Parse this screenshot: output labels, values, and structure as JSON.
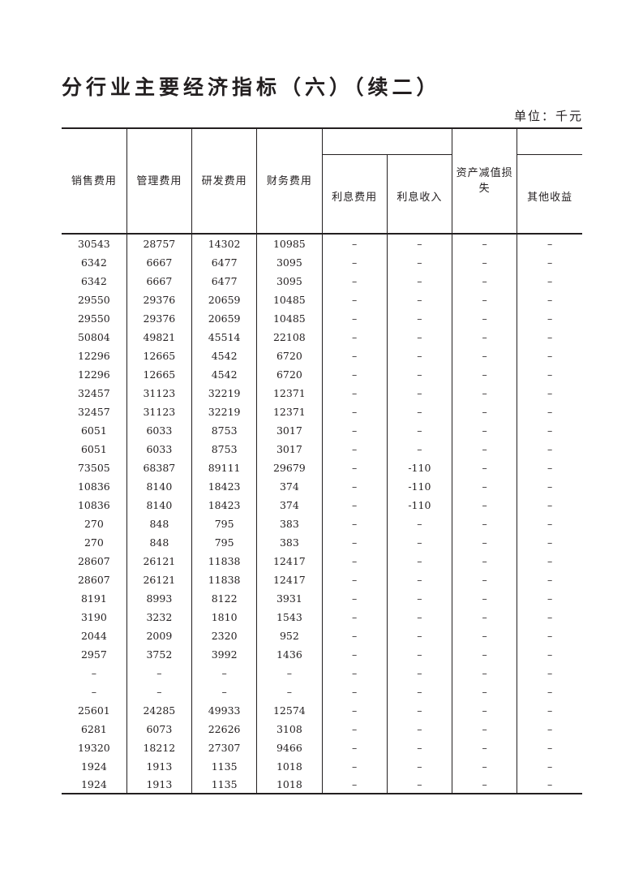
{
  "title": "分行业主要经济指标（六）（续二）",
  "unit": "单位：千元",
  "columns": [
    "销售费用",
    "管理费用",
    "研发费用",
    "财务费用",
    "利息费用",
    "利息收入",
    "资产减值损失",
    "其他收益"
  ],
  "rows": [
    [
      "30543",
      "28757",
      "14302",
      "10985",
      "–",
      "–",
      "–",
      "–"
    ],
    [
      "6342",
      "6667",
      "6477",
      "3095",
      "–",
      "–",
      "–",
      "–"
    ],
    [
      "6342",
      "6667",
      "6477",
      "3095",
      "–",
      "–",
      "–",
      "–"
    ],
    [
      "29550",
      "29376",
      "20659",
      "10485",
      "–",
      "–",
      "–",
      "–"
    ],
    [
      "29550",
      "29376",
      "20659",
      "10485",
      "–",
      "–",
      "–",
      "–"
    ],
    [
      "50804",
      "49821",
      "45514",
      "22108",
      "–",
      "–",
      "–",
      "–"
    ],
    [
      "12296",
      "12665",
      "4542",
      "6720",
      "–",
      "–",
      "–",
      "–"
    ],
    [
      "12296",
      "12665",
      "4542",
      "6720",
      "–",
      "–",
      "–",
      "–"
    ],
    [
      "32457",
      "31123",
      "32219",
      "12371",
      "–",
      "–",
      "–",
      "–"
    ],
    [
      "32457",
      "31123",
      "32219",
      "12371",
      "–",
      "–",
      "–",
      "–"
    ],
    [
      "6051",
      "6033",
      "8753",
      "3017",
      "–",
      "–",
      "–",
      "–"
    ],
    [
      "6051",
      "6033",
      "8753",
      "3017",
      "–",
      "–",
      "–",
      "–"
    ],
    [
      "73505",
      "68387",
      "89111",
      "29679",
      "–",
      "-110",
      "–",
      "–"
    ],
    [
      "10836",
      "8140",
      "18423",
      "374",
      "–",
      "-110",
      "–",
      "–"
    ],
    [
      "10836",
      "8140",
      "18423",
      "374",
      "–",
      "-110",
      "–",
      "–"
    ],
    [
      "270",
      "848",
      "795",
      "383",
      "–",
      "–",
      "–",
      "–"
    ],
    [
      "270",
      "848",
      "795",
      "383",
      "–",
      "–",
      "–",
      "–"
    ],
    [
      "28607",
      "26121",
      "11838",
      "12417",
      "–",
      "–",
      "–",
      "–"
    ],
    [
      "28607",
      "26121",
      "11838",
      "12417",
      "–",
      "–",
      "–",
      "–"
    ],
    [
      "8191",
      "8993",
      "8122",
      "3931",
      "–",
      "–",
      "–",
      "–"
    ],
    [
      "3190",
      "3232",
      "1810",
      "1543",
      "–",
      "–",
      "–",
      "–"
    ],
    [
      "2044",
      "2009",
      "2320",
      "952",
      "–",
      "–",
      "–",
      "–"
    ],
    [
      "2957",
      "3752",
      "3992",
      "1436",
      "–",
      "–",
      "–",
      "–"
    ],
    [
      "–",
      "–",
      "–",
      "–",
      "–",
      "–",
      "–",
      "–"
    ],
    [
      "–",
      "–",
      "–",
      "–",
      "–",
      "–",
      "–",
      "–"
    ],
    [
      "25601",
      "24285",
      "49933",
      "12574",
      "–",
      "–",
      "–",
      "–"
    ],
    [
      "6281",
      "6073",
      "22626",
      "3108",
      "–",
      "–",
      "–",
      "–"
    ],
    [
      "19320",
      "18212",
      "27307",
      "9466",
      "–",
      "–",
      "–",
      "–"
    ],
    [
      "1924",
      "1913",
      "1135",
      "1018",
      "–",
      "–",
      "–",
      "–"
    ],
    [
      "1924",
      "1913",
      "1135",
      "1018",
      "–",
      "–",
      "–",
      "–"
    ]
  ]
}
